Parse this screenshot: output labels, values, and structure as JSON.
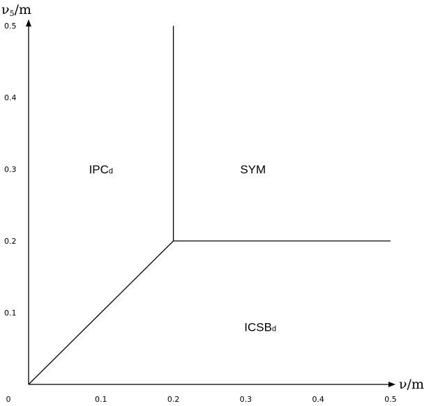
{
  "chart_data": {
    "type": "line",
    "xlabel_base": "ν",
    "xlabel_suffix": "/m",
    "ylabel_base": "ν",
    "ylabel_sub": "5",
    "ylabel_suffix": "/m",
    "xlim": [
      0,
      0.5
    ],
    "ylim": [
      0,
      0.5
    ],
    "x_ticks": [
      "0",
      "0.1",
      "0.2",
      "0.3",
      "0.4",
      "0.5"
    ],
    "y_ticks": [
      "0.1",
      "0.2",
      "0.3",
      "0.4",
      "0.5"
    ],
    "boundaries": [
      {
        "points": [
          [
            0,
            0
          ],
          [
            0.2,
            0.2
          ]
        ]
      },
      {
        "points": [
          [
            0.2,
            0.2
          ],
          [
            0.2,
            0.5
          ]
        ]
      },
      {
        "points": [
          [
            0.2,
            0.2
          ],
          [
            0.5,
            0.2
          ]
        ]
      }
    ],
    "regions": [
      {
        "base": "IPC",
        "sub": "d",
        "x": 0.1,
        "y": 0.3
      },
      {
        "base": "SYM",
        "sub": "",
        "x": 0.31,
        "y": 0.3
      },
      {
        "base": "ICSB",
        "sub": "d",
        "x": 0.32,
        "y": 0.08
      }
    ]
  }
}
